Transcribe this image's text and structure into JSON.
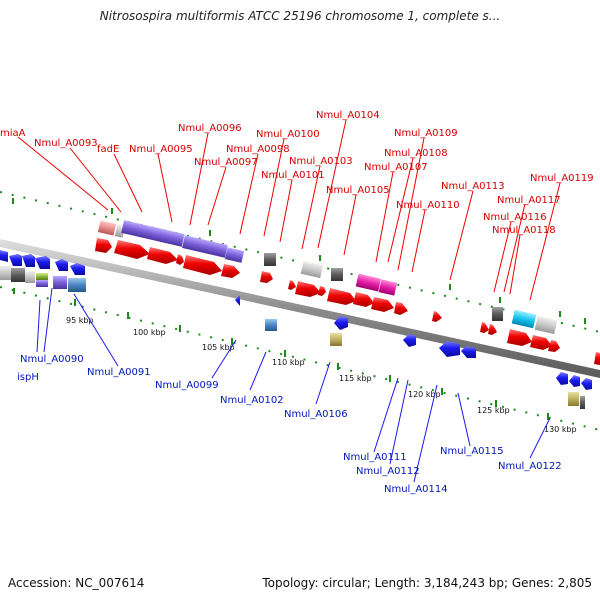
{
  "header": {
    "title": "Nitrosospira multiformis ATCC 25196 chromosome 1, complete s..."
  },
  "footer": {
    "accession": "Accession: NC_007614",
    "topology": "Topology: circular; Length: 3,184,243 bp; Genes: 2,805"
  },
  "scale_labels": [
    "95 kbp",
    "100 kbp",
    "105 kbp",
    "110 kbp",
    "115 kbp",
    "120 kbp",
    "125 kbp",
    "130 kbp"
  ],
  "colors": {
    "forward_label": "#d40000",
    "reverse_label": "#0018b8",
    "forward_gene": "#ee0000",
    "reverse_gene": "#1a1aee",
    "backbone": "#8c8c8c",
    "tick": "#1a8a1a"
  },
  "top_labels": [
    "miaA",
    "Nmul_A0093",
    "fadE",
    "Nmul_A0095",
    "Nmul_A0096",
    "Nmul_A0097",
    "Nmul_A0098",
    "Nmul_A0100",
    "Nmul_A0101",
    "Nmul_A0103",
    "Nmul_A0104",
    "Nmul_A0105",
    "Nmul_A0107",
    "Nmul_A0108",
    "Nmul_A0109",
    "Nmul_A0110",
    "Nmul_A0113",
    "Nmul_A0116",
    "Nmul_A0117",
    "Nmul_A0118",
    "Nmul_A0119"
  ],
  "bottom_labels": [
    "Nmul_A0090",
    "ispH",
    "Nmul_A0091",
    "Nmul_A0099",
    "Nmul_A0102",
    "Nmul_A0106",
    "Nmul_A0111",
    "Nmul_A0112",
    "Nmul_A0114",
    "Nmul_A0115",
    "Nmul_A0122"
  ]
}
